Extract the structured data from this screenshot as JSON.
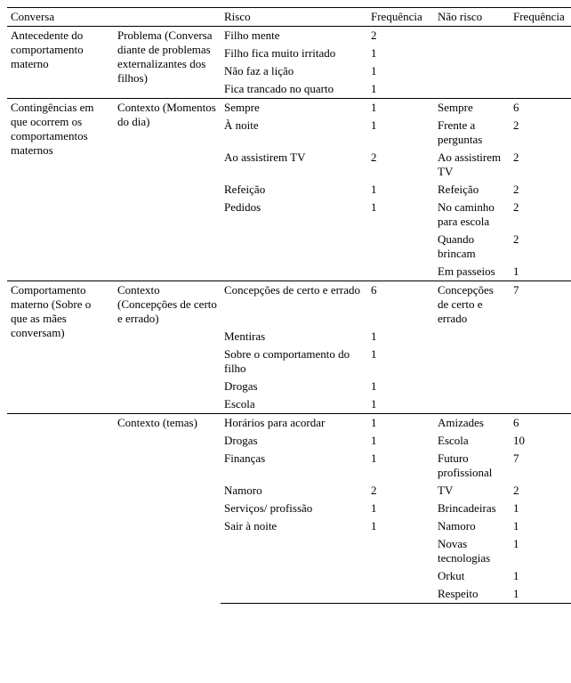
{
  "headers": [
    "Conversa",
    "",
    "Risco",
    "Frequência",
    "Não risco",
    "Frequência"
  ],
  "sections": [
    {
      "col1": "Antecedente do comportamento materno",
      "col2": "Problema (Conversa diante de problemas externalizantes dos filhos)",
      "rows": [
        [
          "Filho mente",
          "2",
          "",
          ""
        ],
        [
          "Filho fica muito irritado",
          "1",
          "",
          ""
        ],
        [
          "Não faz a lição",
          "1",
          "",
          ""
        ],
        [
          "Fica trancado no quarto",
          "1",
          "",
          ""
        ]
      ]
    },
    {
      "col1": "Contingências em que ocorrem os comportamentos maternos",
      "col2": "Contexto  (Momentos do dia)",
      "rows": [
        [
          "Sempre",
          "1",
          "Sempre",
          "6"
        ],
        [
          "À noite",
          "1",
          "Frente a perguntas",
          "2"
        ],
        [
          "Ao assistirem TV",
          "2",
          "Ao assistirem TV",
          "2"
        ],
        [
          "Refeição",
          "1",
          "Refeição",
          "2"
        ],
        [
          "Pedidos",
          "1",
          "No caminho para escola",
          "2"
        ],
        [
          "",
          "",
          "Quando brincam",
          "2"
        ],
        [
          "",
          "",
          "Em passeios",
          "1"
        ]
      ]
    },
    {
      "col1": "Comportamento materno (Sobre o que as mães conversam)",
      "col2": "Contexto (Concepções de certo e errado)",
      "rows": [
        [
          "Concepções de certo e errado",
          "6",
          "Concepções de certo e errado",
          "7"
        ],
        [
          "Mentiras",
          "1",
          "",
          ""
        ],
        [
          "Sobre o comportamento do filho",
          "1",
          "",
          ""
        ],
        [
          "Drogas",
          "1",
          "",
          ""
        ],
        [
          "Escola",
          "1",
          "",
          ""
        ]
      ]
    },
    {
      "col1": "",
      "col2": "Contexto (temas)",
      "rows": [
        [
          "Horários para acordar",
          "1",
          "Amizades",
          "6"
        ],
        [
          "Drogas",
          "1",
          "Escola",
          "10"
        ],
        [
          "Finanças",
          "1",
          "Futuro profissional",
          "7"
        ],
        [
          "Namoro",
          "2",
          "TV",
          "2"
        ],
        [
          "Serviços/ profissão",
          "1",
          "Brincadeiras",
          "1"
        ],
        [
          "Sair à noite",
          "1",
          "Namoro",
          "1"
        ],
        [
          "",
          "",
          "Novas tecnologias",
          "1"
        ],
        [
          "",
          "",
          "Orkut",
          "1"
        ],
        [
          "",
          "",
          "Respeito",
          "1"
        ]
      ]
    }
  ]
}
